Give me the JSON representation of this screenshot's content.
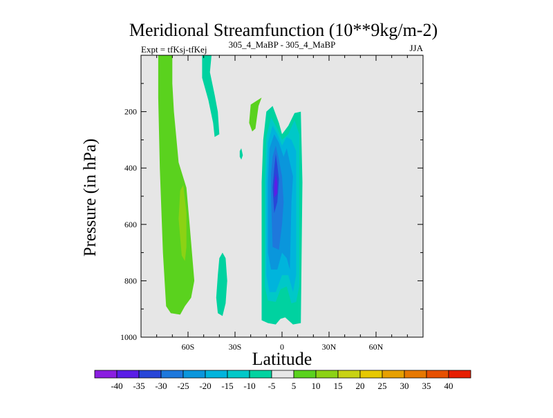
{
  "chart_data": {
    "type": "contour",
    "title": "Meridional Streamfunction (10**9kg/m-2)",
    "left_string": "Expt = tfKsj-tfKej",
    "center_string": "305_4_MaBP - 305_4_MaBP",
    "right_string": "JJA",
    "xlabel": "Latitude",
    "ylabel": "Pressure (in hPa)",
    "xlim": [
      -90,
      90
    ],
    "ylim": [
      1000,
      0
    ],
    "xticks": [
      {
        "value": -60,
        "label": "60S"
      },
      {
        "value": -30,
        "label": "30S"
      },
      {
        "value": 0,
        "label": "0"
      },
      {
        "value": 30,
        "label": "30N"
      },
      {
        "value": 60,
        "label": "60N"
      }
    ],
    "yticks": [
      {
        "value": 200,
        "label": "200"
      },
      {
        "value": 400,
        "label": "400"
      },
      {
        "value": 600,
        "label": "600"
      },
      {
        "value": 800,
        "label": "800"
      },
      {
        "value": 1000,
        "label": "1000"
      }
    ],
    "background_color": "#e6e6e6",
    "colorbar": {
      "levels": [
        "-40",
        "-35",
        "-30",
        "-25",
        "-20",
        "-15",
        "-10",
        "-5",
        "5",
        "10",
        "15",
        "20",
        "25",
        "30",
        "35",
        "40"
      ],
      "colors": [
        "#8a1ee0",
        "#5a1ee6",
        "#2846d8",
        "#1e78dc",
        "#0a96dc",
        "#00b4dc",
        "#00c8c8",
        "#00d2a0",
        "#e6e6e6",
        "#5ad21e",
        "#8cd214",
        "#c8d214",
        "#e6c800",
        "#e6a000",
        "#e67800",
        "#e65000",
        "#e61e00"
      ]
    },
    "regions": [
      {
        "name": "nh-hadley-cell-outer",
        "color": "#00d2a0",
        "points": [
          [
            -9,
            950
          ],
          [
            -13,
            940
          ],
          [
            -13,
            450
          ],
          [
            -12,
            300
          ],
          [
            -10,
            200
          ],
          [
            -6,
            180
          ],
          [
            -2,
            240
          ],
          [
            0,
            280
          ],
          [
            4,
            250
          ],
          [
            8,
            205
          ],
          [
            12,
            200
          ],
          [
            13,
            450
          ],
          [
            12,
            950
          ],
          [
            7,
            955
          ],
          [
            2,
            930
          ],
          [
            -1,
            935
          ],
          [
            -4,
            955
          ]
        ]
      },
      {
        "name": "nh-hadley-cell-level-10",
        "color": "#00c8c8",
        "points": [
          [
            -9,
            870
          ],
          [
            -11,
            820
          ],
          [
            -11,
            450
          ],
          [
            -10,
            290
          ],
          [
            -7,
            220
          ],
          [
            -3,
            260
          ],
          [
            0,
            300
          ],
          [
            4,
            280
          ],
          [
            8,
            230
          ],
          [
            11,
            280
          ],
          [
            11,
            820
          ],
          [
            9,
            875
          ],
          [
            6,
            880
          ],
          [
            3,
            820
          ],
          [
            -1,
            830
          ],
          [
            -4,
            875
          ]
        ]
      },
      {
        "name": "nh-hadley-cell-level-15",
        "color": "#00b4dc",
        "points": [
          [
            -8,
            840
          ],
          [
            -10,
            780
          ],
          [
            -10,
            450
          ],
          [
            -9,
            310
          ],
          [
            -6,
            250
          ],
          [
            -3,
            280
          ],
          [
            0,
            320
          ],
          [
            3,
            290
          ],
          [
            6,
            300
          ],
          [
            9,
            340
          ],
          [
            9,
            780
          ],
          [
            7,
            840
          ],
          [
            4,
            780
          ],
          [
            0,
            780
          ],
          [
            -4,
            840
          ]
        ]
      },
      {
        "name": "nh-hadley-cell-level-20",
        "color": "#0a96dc",
        "points": [
          [
            -7,
            760
          ],
          [
            -9,
            700
          ],
          [
            -9,
            450
          ],
          [
            -8,
            330
          ],
          [
            -5,
            280
          ],
          [
            -2,
            310
          ],
          [
            1,
            360
          ],
          [
            3,
            330
          ],
          [
            5,
            380
          ],
          [
            7,
            430
          ],
          [
            6,
            520
          ],
          [
            5,
            760
          ],
          [
            3,
            720
          ],
          [
            0,
            700
          ],
          [
            -3,
            760
          ]
        ]
      },
      {
        "name": "nh-hadley-cell-level-25",
        "color": "#1e78dc",
        "points": [
          [
            -6,
            680
          ],
          [
            -7,
            500
          ],
          [
            -7,
            420
          ],
          [
            -6,
            360
          ],
          [
            -4,
            320
          ],
          [
            -2,
            370
          ],
          [
            0,
            430
          ],
          [
            1,
            520
          ],
          [
            0,
            600
          ],
          [
            -2,
            690
          ]
        ]
      },
      {
        "name": "nh-hadley-cell-level-30",
        "color": "#2846d8",
        "points": [
          [
            -5,
            560
          ],
          [
            -6,
            470
          ],
          [
            -5,
            400
          ],
          [
            -4,
            350
          ],
          [
            -3,
            390
          ],
          [
            -2,
            440
          ],
          [
            -3,
            520
          ]
        ]
      },
      {
        "name": "nh-hadley-cell-core",
        "color": "#5a1ee6",
        "points": [
          [
            -5,
            505
          ],
          [
            -5,
            460
          ],
          [
            -4,
            420
          ],
          [
            -3,
            450
          ],
          [
            -3,
            490
          ]
        ]
      },
      {
        "name": "sh-green-band",
        "color": "#5ad21e",
        "points": [
          [
            -79,
            0
          ],
          [
            -70,
            0
          ],
          [
            -70,
            100
          ],
          [
            -69,
            200
          ],
          [
            -66,
            380
          ],
          [
            -61,
            470
          ],
          [
            -59,
            600
          ],
          [
            -56,
            800
          ],
          [
            -58,
            860
          ],
          [
            -62,
            890
          ],
          [
            -65,
            920
          ],
          [
            -71,
            915
          ],
          [
            -74,
            890
          ],
          [
            -76,
            700
          ],
          [
            -78,
            400
          ],
          [
            -79,
            150
          ]
        ]
      },
      {
        "name": "sh-green-band-inner",
        "color": "#8cd214",
        "points": [
          [
            -63,
            460
          ],
          [
            -61,
            560
          ],
          [
            -61,
            680
          ],
          [
            -62,
            730
          ],
          [
            -64,
            710
          ],
          [
            -66,
            580
          ],
          [
            -65,
            480
          ]
        ]
      },
      {
        "name": "upper-cyan-strip",
        "color": "#00d2a0",
        "points": [
          [
            -51,
            0
          ],
          [
            -45,
            0
          ],
          [
            -46,
            60
          ],
          [
            -43,
            140
          ],
          [
            -41,
            200
          ],
          [
            -40,
            280
          ],
          [
            -43,
            290
          ],
          [
            -44,
            240
          ],
          [
            -47,
            160
          ],
          [
            -51,
            80
          ]
        ]
      },
      {
        "name": "mid-green-patch",
        "color": "#5ad21e",
        "points": [
          [
            -20,
            175
          ],
          [
            -13,
            150
          ],
          [
            -15,
            180
          ],
          [
            -17,
            260
          ],
          [
            -19,
            270
          ],
          [
            -21,
            240
          ]
        ]
      },
      {
        "name": "small-cyan-patch",
        "color": "#00d2a0",
        "points": [
          [
            -26,
            330
          ],
          [
            -25,
            355
          ],
          [
            -26,
            370
          ],
          [
            -27,
            360
          ],
          [
            -27,
            340
          ]
        ]
      },
      {
        "name": "lower-cyan-strip",
        "color": "#00d2a0",
        "points": [
          [
            -38,
            700
          ],
          [
            -36,
            720
          ],
          [
            -35,
            800
          ],
          [
            -36,
            880
          ],
          [
            -38,
            925
          ],
          [
            -41,
            915
          ],
          [
            -42,
            860
          ],
          [
            -41,
            780
          ],
          [
            -40,
            720
          ]
        ]
      }
    ]
  }
}
